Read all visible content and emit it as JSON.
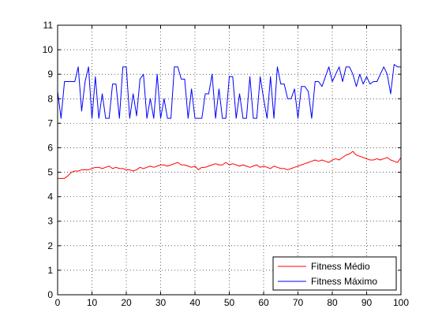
{
  "chart_data": {
    "type": "line",
    "title": "",
    "xlabel": "",
    "ylabel": "",
    "xlim": [
      0,
      100
    ],
    "ylim": [
      0,
      11
    ],
    "xticks": [
      0,
      10,
      20,
      30,
      40,
      50,
      60,
      70,
      80,
      90,
      100
    ],
    "yticks": [
      0,
      1,
      2,
      3,
      4,
      5,
      6,
      7,
      8,
      9,
      10,
      11
    ],
    "grid": true,
    "grid_style": "dotted",
    "legend_position": "bottom-right",
    "series": [
      {
        "name": "Fitness Médio",
        "color": "#ff0000",
        "x": [
          0,
          1,
          2,
          3,
          4,
          5,
          6,
          7,
          8,
          9,
          10,
          11,
          12,
          13,
          14,
          15,
          16,
          17,
          18,
          19,
          20,
          21,
          22,
          23,
          24,
          25,
          26,
          27,
          28,
          29,
          30,
          31,
          32,
          33,
          34,
          35,
          36,
          37,
          38,
          39,
          40,
          41,
          42,
          43,
          44,
          45,
          46,
          47,
          48,
          49,
          50,
          51,
          52,
          53,
          54,
          55,
          56,
          57,
          58,
          59,
          60,
          61,
          62,
          63,
          64,
          65,
          66,
          67,
          68,
          69,
          70,
          71,
          72,
          73,
          74,
          75,
          76,
          77,
          78,
          79,
          80,
          81,
          82,
          83,
          84,
          85,
          86,
          87,
          88,
          89,
          90,
          91,
          92,
          93,
          94,
          95,
          96,
          97,
          98,
          99,
          100
        ],
        "y": [
          4.75,
          4.75,
          4.75,
          4.85,
          5.0,
          5.05,
          5.05,
          5.1,
          5.1,
          5.1,
          5.15,
          5.2,
          5.2,
          5.15,
          5.2,
          5.25,
          5.15,
          5.2,
          5.15,
          5.15,
          5.1,
          5.1,
          5.05,
          5.1,
          5.2,
          5.15,
          5.2,
          5.25,
          5.2,
          5.25,
          5.3,
          5.3,
          5.25,
          5.3,
          5.35,
          5.4,
          5.3,
          5.3,
          5.25,
          5.2,
          5.25,
          5.1,
          5.2,
          5.2,
          5.25,
          5.3,
          5.35,
          5.3,
          5.3,
          5.4,
          5.3,
          5.35,
          5.3,
          5.25,
          5.3,
          5.25,
          5.2,
          5.25,
          5.3,
          5.2,
          5.25,
          5.2,
          5.15,
          5.25,
          5.2,
          5.15,
          5.15,
          5.1,
          5.15,
          5.2,
          5.25,
          5.3,
          5.35,
          5.4,
          5.45,
          5.5,
          5.45,
          5.5,
          5.45,
          5.4,
          5.5,
          5.55,
          5.5,
          5.6,
          5.7,
          5.75,
          5.85,
          5.7,
          5.65,
          5.6,
          5.55,
          5.5,
          5.5,
          5.55,
          5.5,
          5.55,
          5.6,
          5.5,
          5.45,
          5.4,
          5.6
        ]
      },
      {
        "name": "Fitness Máximo",
        "color": "#0000ff",
        "x": [
          0,
          1,
          2,
          3,
          4,
          5,
          6,
          7,
          8,
          9,
          10,
          11,
          12,
          13,
          14,
          15,
          16,
          17,
          18,
          19,
          20,
          21,
          22,
          23,
          24,
          25,
          26,
          27,
          28,
          29,
          30,
          31,
          32,
          33,
          34,
          35,
          36,
          37,
          38,
          39,
          40,
          41,
          42,
          43,
          44,
          45,
          46,
          47,
          48,
          49,
          50,
          51,
          52,
          53,
          54,
          55,
          56,
          57,
          58,
          59,
          60,
          61,
          62,
          63,
          64,
          65,
          66,
          67,
          68,
          69,
          70,
          71,
          72,
          73,
          74,
          75,
          76,
          77,
          78,
          79,
          80,
          81,
          82,
          83,
          84,
          85,
          86,
          87,
          88,
          89,
          90,
          91,
          92,
          93,
          94,
          95,
          96,
          97,
          98,
          99,
          100
        ],
        "y": [
          8.3,
          7.2,
          8.7,
          8.7,
          8.7,
          8.7,
          9.3,
          7.5,
          8.7,
          9.3,
          7.2,
          8.9,
          7.2,
          8.2,
          7.2,
          7.2,
          8.6,
          8.6,
          7.2,
          9.3,
          9.3,
          7.2,
          8.2,
          7.3,
          8.8,
          9.0,
          7.2,
          8.0,
          7.2,
          9.0,
          7.2,
          8.0,
          7.2,
          7.2,
          9.3,
          9.3,
          8.8,
          8.8,
          7.2,
          8.4,
          7.2,
          7.2,
          7.2,
          8.2,
          8.2,
          9.0,
          7.2,
          8.4,
          7.2,
          7.2,
          8.9,
          8.9,
          7.2,
          8.2,
          7.2,
          7.2,
          8.9,
          7.2,
          7.2,
          8.9,
          8.0,
          7.2,
          8.9,
          7.2,
          9.3,
          8.6,
          8.6,
          8.0,
          8.0,
          8.4,
          7.2,
          8.5,
          8.5,
          8.3,
          7.2,
          8.7,
          8.7,
          8.5,
          8.9,
          9.3,
          8.7,
          9.0,
          9.3,
          8.7,
          9.3,
          9.3,
          9.0,
          8.5,
          9.0,
          8.6,
          8.9,
          8.6,
          8.7,
          8.7,
          9.0,
          9.3,
          9.0,
          8.2,
          9.4,
          9.3,
          9.3
        ]
      }
    ]
  }
}
